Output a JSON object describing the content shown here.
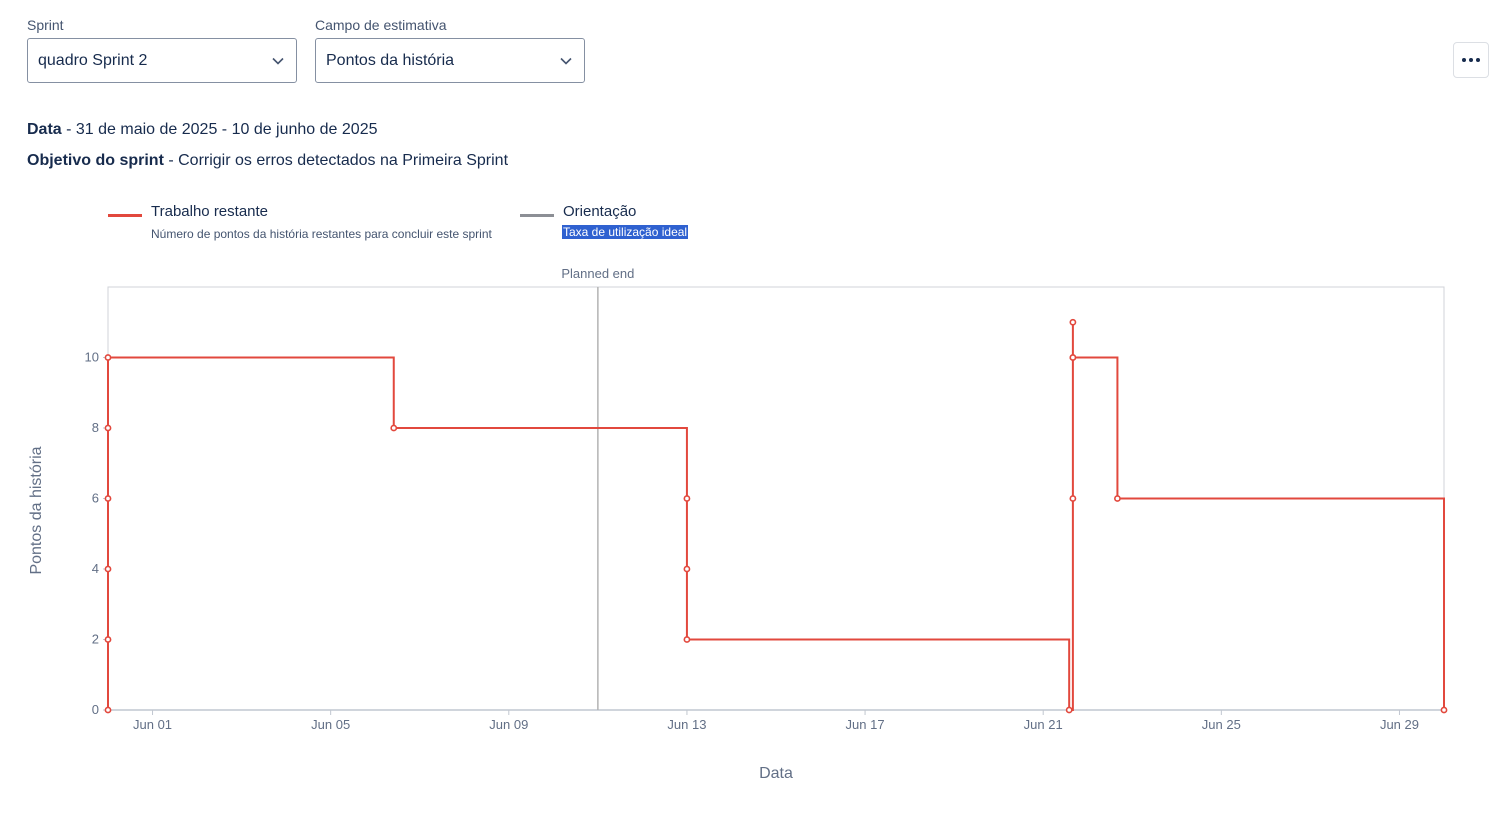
{
  "filters": {
    "sprint_label": "Sprint",
    "sprint_value": "quadro Sprint 2",
    "estimate_label": "Campo de estimativa",
    "estimate_value": "Pontos da história"
  },
  "more_actions_icon": "ellipsis-icon",
  "meta": {
    "date_label": "Data",
    "date_value": " - 31 de maio de 2025 - 10 de junho de 2025",
    "goal_label": "Objetivo do sprint",
    "goal_value": " - Corrigir os erros detectados na Primeira Sprint"
  },
  "legend": {
    "remaining_title": "Trabalho restante",
    "remaining_desc": "Número de pontos da história restantes para concluir este sprint",
    "guide_title": "Orientação",
    "guide_desc": "Taxa de utilização ideal"
  },
  "colors": {
    "remaining": "#e2483d",
    "guideline": "#8c8f95",
    "planned_end": "#b3b3b3",
    "axis": "#c1c7d0"
  },
  "chart_data": {
    "type": "line",
    "step": true,
    "xlabel": "Data",
    "ylabel": "Pontos da história",
    "annotation": "Planned end",
    "planned_end_date": "2025-06-11",
    "x_ticks": [
      "Jun 01",
      "Jun 05",
      "Jun 09",
      "Jun 13",
      "Jun 17",
      "Jun 21",
      "Jun 25",
      "Jun 29"
    ],
    "x_tick_dates": [
      "2025-06-01",
      "2025-06-05",
      "2025-06-09",
      "2025-06-13",
      "2025-06-17",
      "2025-06-21",
      "2025-06-25",
      "2025-06-29"
    ],
    "xlim": [
      "2025-05-31",
      "2025-06-30"
    ],
    "ylim": [
      0,
      12
    ],
    "y_ticks": [
      0,
      2,
      4,
      6,
      8,
      10
    ],
    "series": [
      {
        "name": "Trabalho restante",
        "points": [
          {
            "date": "2025-05-31T00:00",
            "value": 0
          },
          {
            "date": "2025-05-31T00:00",
            "value": 2
          },
          {
            "date": "2025-05-31T00:00",
            "value": 4
          },
          {
            "date": "2025-05-31T00:00",
            "value": 6
          },
          {
            "date": "2025-05-31T00:00",
            "value": 8
          },
          {
            "date": "2025-05-31T00:00",
            "value": 10
          },
          {
            "date": "2025-06-06T10:00",
            "value": 8
          },
          {
            "date": "2025-06-13T00:00",
            "value": 6
          },
          {
            "date": "2025-06-13T00:00",
            "value": 4
          },
          {
            "date": "2025-06-13T00:00",
            "value": 2
          },
          {
            "date": "2025-06-21T14:00",
            "value": 0
          },
          {
            "date": "2025-06-21T16:00",
            "value": 6
          },
          {
            "date": "2025-06-21T16:00",
            "value": 10
          },
          {
            "date": "2025-06-21T16:00",
            "value": 11
          },
          {
            "date": "2025-06-21T16:00",
            "value": 10
          },
          {
            "date": "2025-06-22T16:00",
            "value": 6
          },
          {
            "date": "2025-06-30T00:00",
            "value": 0
          }
        ]
      }
    ]
  }
}
